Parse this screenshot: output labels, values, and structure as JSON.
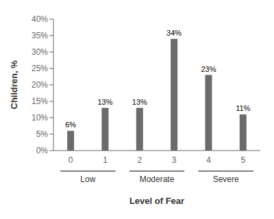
{
  "chart_data": {
    "type": "bar",
    "categories": [
      "0",
      "1",
      "2",
      "3",
      "4",
      "5"
    ],
    "values": [
      6,
      13,
      13,
      34,
      23,
      11
    ],
    "value_labels": [
      "6%",
      "13%",
      "13%",
      "34%",
      "23%",
      "11%"
    ],
    "data_labels": true,
    "color": "#6b6b6b",
    "xlabel": "Level of Fear",
    "ylabel": "Children, %",
    "ylim": [
      0,
      40
    ],
    "yticks": [
      {
        "value": 0,
        "label": "0%"
      },
      {
        "value": 5,
        "label": "5%"
      },
      {
        "value": 10,
        "label": "10%"
      },
      {
        "value": 15,
        "label": "15%"
      },
      {
        "value": 20,
        "label": "20%"
      },
      {
        "value": 25,
        "label": "25%"
      },
      {
        "value": 30,
        "label": "30%"
      },
      {
        "value": 35,
        "label": "35%"
      },
      {
        "value": 40,
        "label": "40%"
      }
    ],
    "groups": [
      {
        "label": "Low",
        "categories": [
          "0",
          "1"
        ]
      },
      {
        "label": "Moderate",
        "categories": [
          "2",
          "3"
        ]
      },
      {
        "label": "Severe",
        "categories": [
          "4",
          "5"
        ]
      }
    ],
    "grid": false
  }
}
